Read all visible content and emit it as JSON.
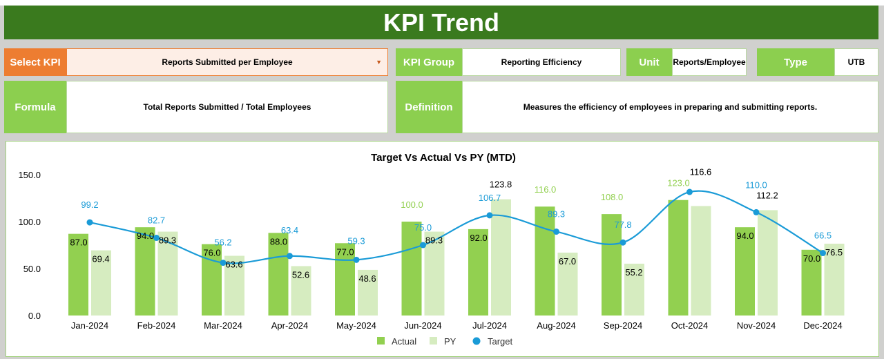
{
  "header": {
    "title": "KPI Trend"
  },
  "select_kpi": {
    "label": "Select KPI",
    "value": "Reports Submitted per Employee"
  },
  "kpi_group": {
    "label": "KPI Group",
    "value": "Reporting Efficiency"
  },
  "unit": {
    "label": "Unit",
    "value": "Reports/Employee"
  },
  "type": {
    "label": "Type",
    "value": "UTB"
  },
  "formula": {
    "label": "Formula",
    "value": "Total Reports Submitted / Total Employees"
  },
  "definition": {
    "label": "Definition",
    "value": "Measures the efficiency of employees in preparing and submitting reports."
  },
  "colors": {
    "header": "#3a7a1e",
    "label_bg": "#8ccf4f",
    "select_bg": "#ed7d31",
    "actual": "#92d050",
    "py": "#d6ecc0",
    "target": "#1a9bd7"
  },
  "chart_data": {
    "type": "bar",
    "title": "Target Vs Actual Vs PY (MTD)",
    "categories": [
      "Jan-2024",
      "Feb-2024",
      "Mar-2024",
      "Apr-2024",
      "May-2024",
      "Jun-2024",
      "Jul-2024",
      "Aug-2024",
      "Sep-2024",
      "Oct-2024",
      "Nov-2024",
      "Dec-2024"
    ],
    "yticks": [
      "0.0",
      "50.0",
      "100.0",
      "150.0"
    ],
    "ylim": [
      0,
      150
    ],
    "legend_position": "bottom",
    "series": [
      {
        "name": "Actual",
        "kind": "bar",
        "values": [
          87.0,
          94.0,
          76.0,
          88.0,
          77.0,
          100.0,
          92.0,
          116.0,
          108.0,
          123.0,
          94.0,
          70.0
        ]
      },
      {
        "name": "PY",
        "kind": "bar",
        "values": [
          69.4,
          89.3,
          63.6,
          52.6,
          48.6,
          89.3,
          123.8,
          67.0,
          55.2,
          116.6,
          112.2,
          76.5
        ]
      },
      {
        "name": "Target",
        "kind": "line",
        "values": [
          99.2,
          82.7,
          56.2,
          63.4,
          59.3,
          75.0,
          106.7,
          89.3,
          77.8,
          131.6,
          110.0,
          66.5
        ]
      }
    ]
  }
}
